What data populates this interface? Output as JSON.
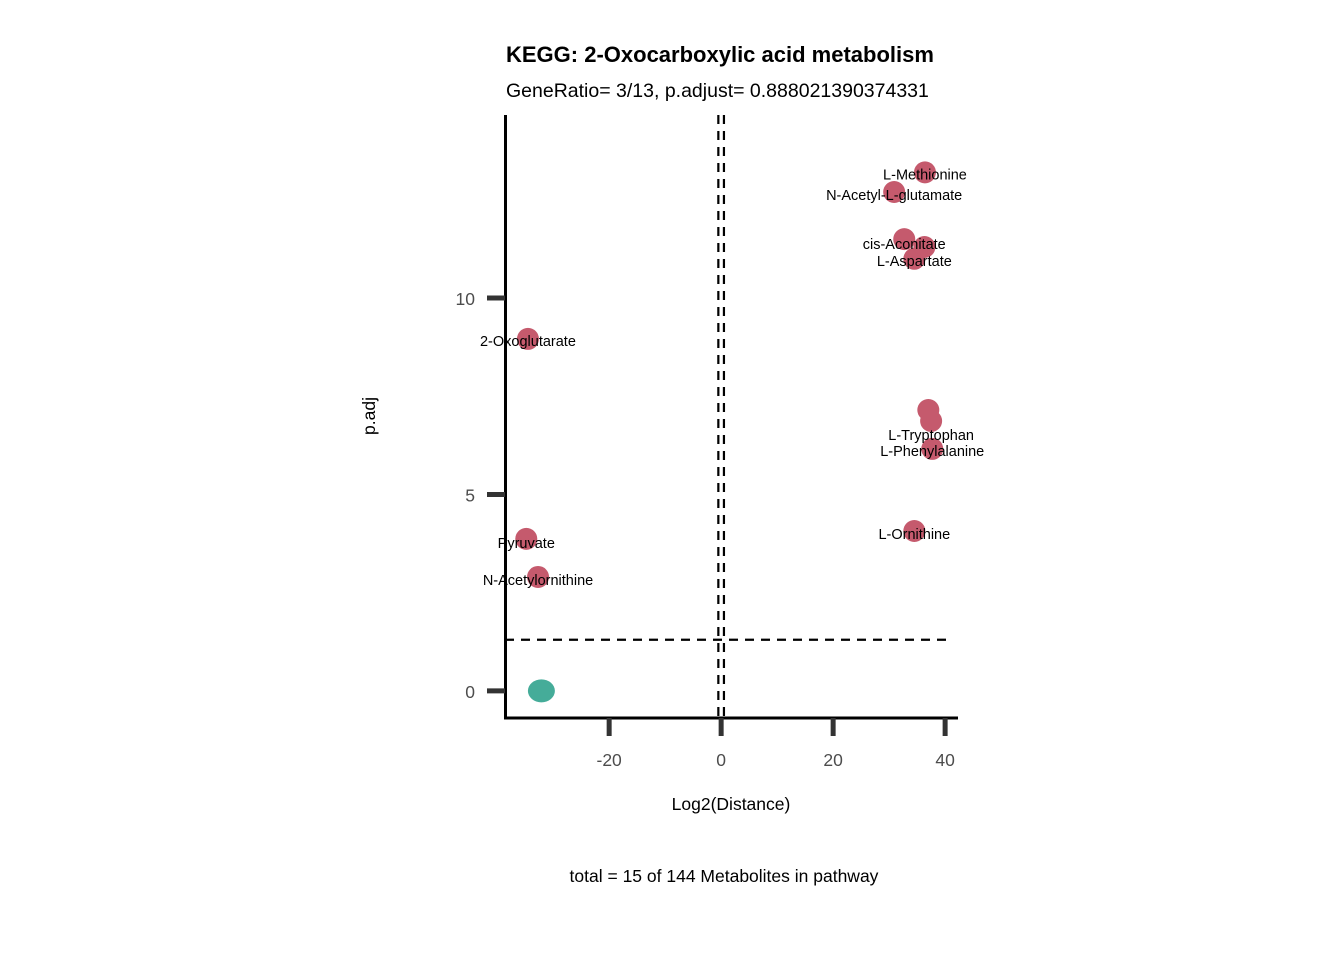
{
  "chart_data": {
    "type": "scatter",
    "title": "KEGG: 2-Oxocarboxylic acid metabolism",
    "subtitle": "GeneRatio= 3/13, p.adjust= 0.888021390374331",
    "xlabel": "Log2(Distance)",
    "ylabel": "p.adj",
    "caption": "total = 15 of 144 Metabolites in pathway",
    "xlim": [
      -38.6,
      42.3
    ],
    "ylim": [
      -0.69,
      14.66
    ],
    "x_ticks": [
      -20,
      0,
      20,
      40
    ],
    "x_tick_labels": [
      "-20",
      "0",
      "20",
      "40"
    ],
    "y_ticks": [
      0,
      5,
      10
    ],
    "y_tick_labels": [
      "0",
      "5",
      "10"
    ],
    "grid": false,
    "reference_lines": {
      "vertical": [
        -0.5,
        0.5
      ],
      "horizontal": [
        1.301
      ]
    },
    "colors": {
      "significant": "#C55A6D",
      "not_significant": "#45AC99"
    },
    "points": [
      {
        "label": "L-Methionine",
        "x": 36.4,
        "y": 13.2,
        "group": "significant"
      },
      {
        "label": "N-Acetyl-L-glutamate",
        "x": 30.9,
        "y": 12.7,
        "group": "significant"
      },
      {
        "label": "cis-Aconitate",
        "x": 32.7,
        "y": 11.5,
        "group": "significant"
      },
      {
        "label": "",
        "x": 36.3,
        "y": 11.3,
        "group": "significant"
      },
      {
        "label": "L-Aspartate",
        "x": 34.5,
        "y": 11.0,
        "group": "significant"
      },
      {
        "label": "2-Oxoglutarate",
        "x": -34.5,
        "y": 8.96,
        "group": "significant"
      },
      {
        "label": "",
        "x": 37.0,
        "y": 7.15,
        "group": "significant"
      },
      {
        "label": "L-Tryptophan",
        "x": 37.5,
        "y": 6.87,
        "group": "significant"
      },
      {
        "label": "L-Phenylalanine",
        "x": 37.7,
        "y": 6.16,
        "group": "significant"
      },
      {
        "label": "L-Ornithine",
        "x": 34.5,
        "y": 4.07,
        "group": "significant"
      },
      {
        "label": "Pyruvate",
        "x": -34.8,
        "y": 3.87,
        "group": "significant"
      },
      {
        "label": "N-Acetylornithine",
        "x": -32.7,
        "y": 2.9,
        "group": "significant"
      },
      {
        "label": "",
        "x": -32.1,
        "y": 0.0,
        "group": "not_significant"
      }
    ]
  }
}
